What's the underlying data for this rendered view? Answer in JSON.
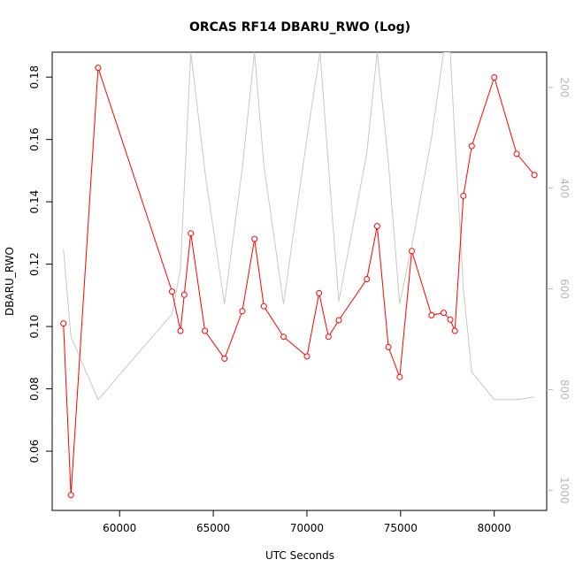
{
  "chart_data": {
    "type": "line",
    "title": "ORCAS RF14 DBARU_RWO (Log)",
    "xlabel": "UTC Seconds",
    "ylabel": "DBARU_RWO",
    "xlim": [
      56400,
      82800
    ],
    "ylim": [
      0.041,
      0.188
    ],
    "y2lim": [
      1040,
      130
    ],
    "y2_reversed": true,
    "x_ticks": [
      60000,
      65000,
      70000,
      75000,
      80000
    ],
    "y_ticks": [
      0.06,
      0.08,
      0.1,
      0.12,
      0.14,
      0.16,
      0.18
    ],
    "y2_ticks": [
      200,
      400,
      600,
      800,
      1000
    ],
    "x_tick_labels": [
      "60000",
      "65000",
      "70000",
      "75000",
      "80000"
    ],
    "y_tick_labels": [
      "0.06",
      "0.08",
      "0.10",
      "0.12",
      "0.14",
      "0.16",
      "0.18"
    ],
    "y2_tick_labels": [
      "200",
      "400",
      "600",
      "800",
      "1000"
    ],
    "grid": false,
    "colors": {
      "primary": "#ff0000",
      "secondary": "#c8c8c8",
      "axes": "#000000",
      "right_axis": "#b8b8b8"
    },
    "series": [
      {
        "axis": "left",
        "color": "#ff0000",
        "marker": "open-circle",
        "x": [
          57000,
          57400,
          58850,
          62800,
          63250,
          63450,
          63800,
          64550,
          65600,
          66550,
          67200,
          67700,
          68750,
          70000,
          70650,
          71150,
          71700,
          73200,
          73750,
          74350,
          74950,
          75600,
          76650,
          77300,
          77650,
          77900,
          78350,
          78800,
          80000,
          81200,
          82150
        ],
        "y": [
          0.101,
          0.0459,
          0.183,
          0.1112,
          0.0986,
          0.1102,
          0.1299,
          0.0986,
          0.0897,
          0.1049,
          0.1281,
          0.1065,
          0.0967,
          0.0904,
          0.1107,
          0.0967,
          0.102,
          0.1152,
          0.1322,
          0.0934,
          0.0838,
          0.1242,
          0.1036,
          0.1044,
          0.1022,
          0.0986,
          0.1419,
          0.1579,
          0.1799,
          0.1554,
          0.1486
        ]
      },
      {
        "axis": "right",
        "color": "#c8c8c8",
        "marker": "none",
        "x": [
          57000,
          57400,
          58850,
          62800,
          63250,
          63450,
          63800,
          64600,
          65600,
          66550,
          67200,
          67700,
          68750,
          70000,
          70700,
          71150,
          71700,
          73200,
          73750,
          74350,
          74950,
          75600,
          76650,
          77300,
          77650,
          77900,
          78350,
          78800,
          80000,
          81200,
          82150
        ],
        "y": [
          520,
          695,
          820,
          650,
          560,
          400,
          130,
          380,
          630,
          360,
          130,
          355,
          630,
          300,
          130,
          355,
          625,
          330,
          130,
          350,
          630,
          515,
          300,
          130,
          130,
          300,
          600,
          765,
          820,
          820,
          815
        ]
      }
    ]
  }
}
